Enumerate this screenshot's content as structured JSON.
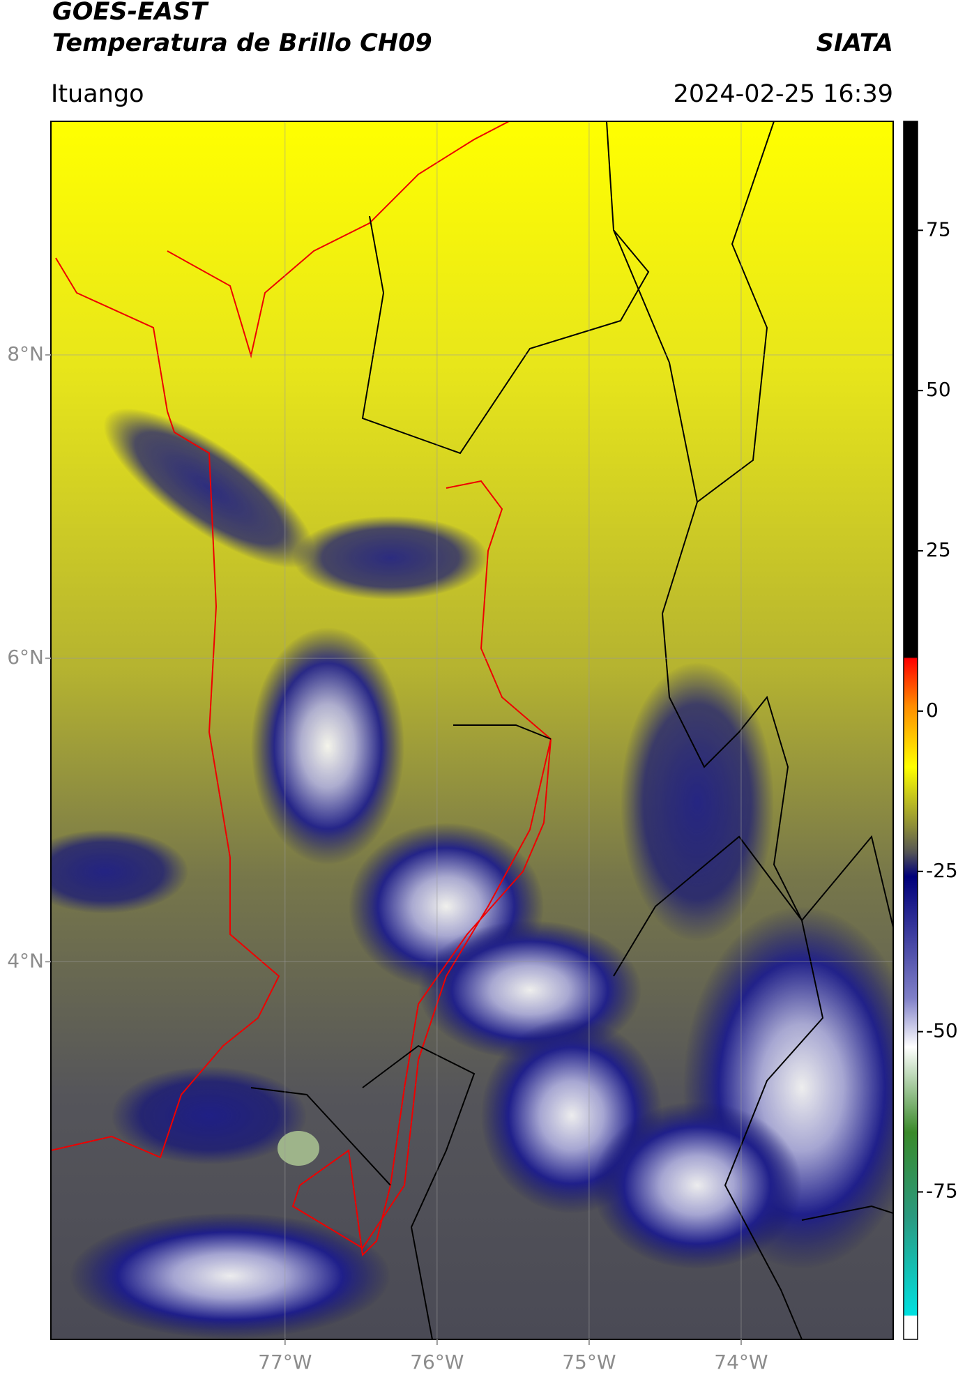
{
  "header": {
    "title": "GOES-EAST",
    "subtitle": "Temperatura de Brillo CH09",
    "brand": "SIATA",
    "location": "Ituango",
    "datetime": "2024-02-25 16:39"
  },
  "map": {
    "xlim": [
      -78.54,
      -73.0
    ],
    "ylim": [
      1.51,
      9.54
    ],
    "xticks": [
      {
        "value": -77,
        "label": "77°W"
      },
      {
        "value": -76,
        "label": "76°W"
      },
      {
        "value": -75,
        "label": "75°W"
      },
      {
        "value": -74,
        "label": "74°W"
      }
    ],
    "yticks": [
      {
        "value": 8,
        "label": "8°N"
      },
      {
        "value": 6,
        "label": "6°N"
      },
      {
        "value": 4,
        "label": "4°N"
      }
    ],
    "grid": true
  },
  "colorbar": {
    "lim": [
      -98,
      92
    ],
    "ticks": [
      75,
      50,
      25,
      0,
      -25,
      -50,
      -75
    ]
  }
}
